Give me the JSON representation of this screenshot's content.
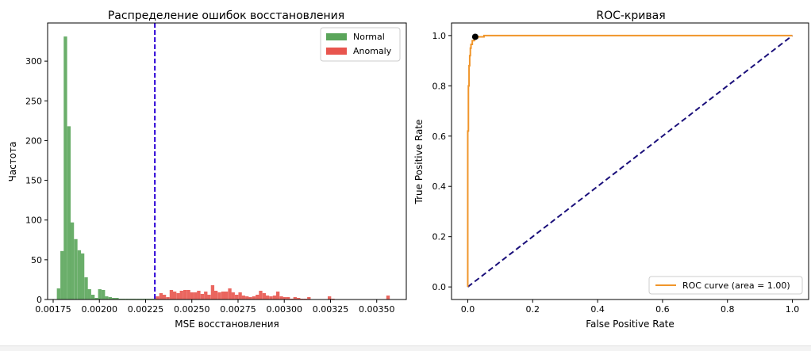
{
  "chart_data": [
    {
      "type": "histogram",
      "title": "Распределение ошибок восстановления",
      "xlabel": "MSE восстановления",
      "ylabel": "Частота",
      "xlim": [
        0.00172,
        0.00366
      ],
      "ylim": [
        0,
        348
      ],
      "xticks": [
        0.00175,
        0.002,
        0.00225,
        0.0025,
        0.00275,
        0.003,
        0.00325,
        0.0035
      ],
      "xtick_labels": [
        "0.00175",
        "0.00200",
        "0.00225",
        "0.00250",
        "0.00275",
        "0.00300",
        "0.00325",
        "0.00350"
      ],
      "yticks": [
        0,
        50,
        100,
        150,
        200,
        250,
        300
      ],
      "grid": false,
      "legend_position": "top-right",
      "threshold": 0.0023,
      "threshold_color": "#2b00d6",
      "series": [
        {
          "name": "Normal",
          "color": "#5aa55a",
          "bin_width": 1.86e-05,
          "bins_start": [
            0.00177,
            0.001789,
            0.001807,
            0.001826,
            0.001844,
            0.001863,
            0.001882,
            0.0019,
            0.001919,
            0.001937,
            0.001956,
            0.001975,
            0.001993,
            0.002012,
            0.00203,
            0.002049,
            0.002068,
            0.002086,
            0.002105,
            0.002123,
            0.002142,
            0.002161,
            0.002179,
            0.002198,
            0.002216,
            0.002235,
            0.002254,
            0.002272,
            0.002291
          ],
          "counts": [
            14,
            61,
            331,
            218,
            97,
            76,
            62,
            58,
            28,
            13,
            6,
            2,
            13,
            12,
            4,
            3,
            2,
            2,
            1,
            1,
            1,
            1,
            1,
            1,
            1,
            1,
            1,
            1,
            1
          ]
        },
        {
          "name": "Anomaly",
          "color": "#e8554e",
          "bin_width": 1.86e-05,
          "bins_start": [
            0.002305,
            0.002324,
            0.002342,
            0.002361,
            0.00238,
            0.002398,
            0.002417,
            0.002435,
            0.002454,
            0.002473,
            0.002491,
            0.00251,
            0.002528,
            0.002547,
            0.002566,
            0.002584,
            0.002603,
            0.002621,
            0.00264,
            0.002659,
            0.002677,
            0.002696,
            0.002714,
            0.002733,
            0.002752,
            0.00277,
            0.002789,
            0.002807,
            0.002826,
            0.002845,
            0.002863,
            0.002882,
            0.0029,
            0.002919,
            0.002938,
            0.002956,
            0.002975,
            0.002993,
            0.003012,
            0.003031,
            0.003049,
            0.003068,
            0.003086,
            0.003105,
            0.003124,
            0.003142,
            0.003161,
            0.003179,
            0.003198,
            0.003217,
            0.003235,
            0.003254,
            0.003272,
            0.003291,
            0.00331,
            0.003328,
            0.003347,
            0.003365,
            0.003384,
            0.003403,
            0.003421,
            0.00344,
            0.003459,
            0.003477,
            0.003496,
            0.003514,
            0.003533,
            0.003552
          ],
          "counts": [
            4,
            8,
            6,
            3,
            12,
            10,
            8,
            11,
            12,
            12,
            9,
            9,
            11,
            7,
            10,
            6,
            18,
            11,
            9,
            10,
            10,
            14,
            9,
            6,
            9,
            5,
            4,
            3,
            4,
            6,
            11,
            8,
            5,
            4,
            5,
            10,
            4,
            3,
            3,
            1,
            3,
            2,
            1,
            1,
            3,
            0,
            0,
            0,
            0,
            0,
            4,
            1,
            0,
            0,
            0,
            0,
            0,
            0,
            0,
            0,
            0,
            0,
            0,
            0,
            0,
            0,
            0,
            5
          ]
        }
      ]
    },
    {
      "type": "line",
      "title": "ROC-кривая",
      "xlabel": "False Positive Rate",
      "ylabel": "True Positive Rate",
      "xlim": [
        -0.05,
        1.05
      ],
      "ylim": [
        -0.05,
        1.05
      ],
      "xticks": [
        0.0,
        0.2,
        0.4,
        0.6,
        0.8,
        1.0
      ],
      "xtick_labels": [
        "0.0",
        "0.2",
        "0.4",
        "0.6",
        "0.8",
        "1.0"
      ],
      "yticks": [
        0.0,
        0.2,
        0.4,
        0.6,
        0.8,
        1.0
      ],
      "ytick_labels": [
        "0.0",
        "0.2",
        "0.4",
        "0.6",
        "0.8",
        "1.0"
      ],
      "grid": false,
      "legend_position": "bottom-right",
      "series": [
        {
          "name": "ROC curve (area = 1.00)",
          "color": "#f0952a",
          "x": [
            0.0,
            0.0,
            0.002,
            0.002,
            0.004,
            0.004,
            0.006,
            0.006,
            0.008,
            0.008,
            0.01,
            0.01,
            0.014,
            0.014,
            0.02,
            0.02,
            0.03,
            0.03,
            0.05,
            0.05,
            1.0
          ],
          "y": [
            0.0,
            0.62,
            0.62,
            0.8,
            0.8,
            0.88,
            0.88,
            0.92,
            0.92,
            0.95,
            0.95,
            0.965,
            0.965,
            0.98,
            0.98,
            0.99,
            0.99,
            0.995,
            0.995,
            1.0,
            1.0
          ]
        },
        {
          "name": "",
          "color": "#1a0f7a",
          "style": "dashed",
          "x": [
            0.0,
            1.0
          ],
          "y": [
            0.0,
            1.0
          ]
        }
      ],
      "marker": {
        "x": 0.023,
        "y": 0.995,
        "color": "#000000"
      }
    }
  ]
}
